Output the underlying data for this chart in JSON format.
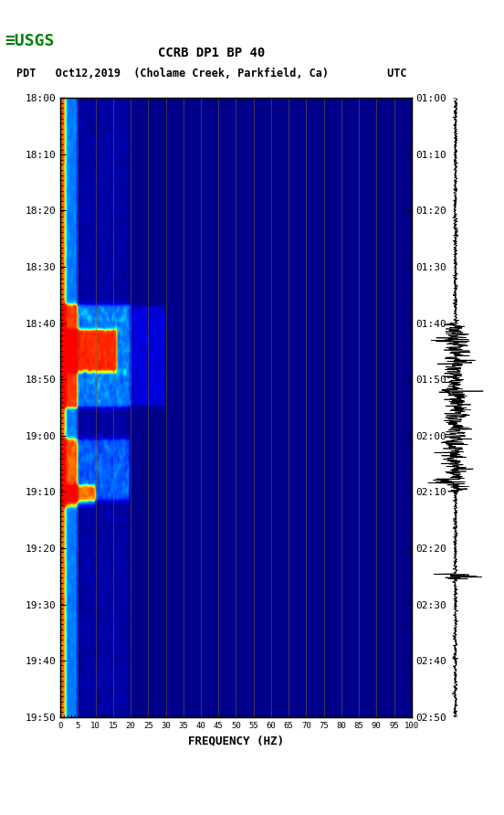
{
  "title_line1": "CCRB DP1 BP 40",
  "title_line2": "PDT   Oct12,2019  (Cholame Creek, Parkfield, Ca)         UTC",
  "xlabel": "FREQUENCY (HZ)",
  "freq_ticks": [
    0,
    5,
    10,
    15,
    20,
    25,
    30,
    35,
    40,
    45,
    50,
    55,
    60,
    65,
    70,
    75,
    80,
    85,
    90,
    95,
    100
  ],
  "freq_min": 0,
  "freq_max": 100,
  "time_start_pdt": "18:00",
  "time_end_pdt": "19:50",
  "time_start_utc": "01:00",
  "time_end_utc": "02:50",
  "time_labels_left": [
    "18:00",
    "18:10",
    "18:20",
    "18:30",
    "18:40",
    "18:50",
    "19:00",
    "19:10",
    "19:20",
    "19:30",
    "19:40",
    "19:50"
  ],
  "time_labels_right": [
    "01:00",
    "01:10",
    "01:20",
    "01:30",
    "01:40",
    "01:50",
    "02:00",
    "02:10",
    "02:20",
    "02:30",
    "02:40",
    "02:50"
  ],
  "n_time": 600,
  "n_freq": 500,
  "background_color": "#ffffff",
  "spectrogram_bg": "#00008B",
  "gridline_color": "#8B6914",
  "gridline_freq_positions": [
    5,
    10,
    15,
    20,
    25,
    30,
    35,
    40,
    45,
    50,
    55,
    60,
    65,
    70,
    75,
    80,
    85,
    90,
    95,
    100
  ],
  "logo_color": "#008000",
  "seismogram_color": "#000000"
}
